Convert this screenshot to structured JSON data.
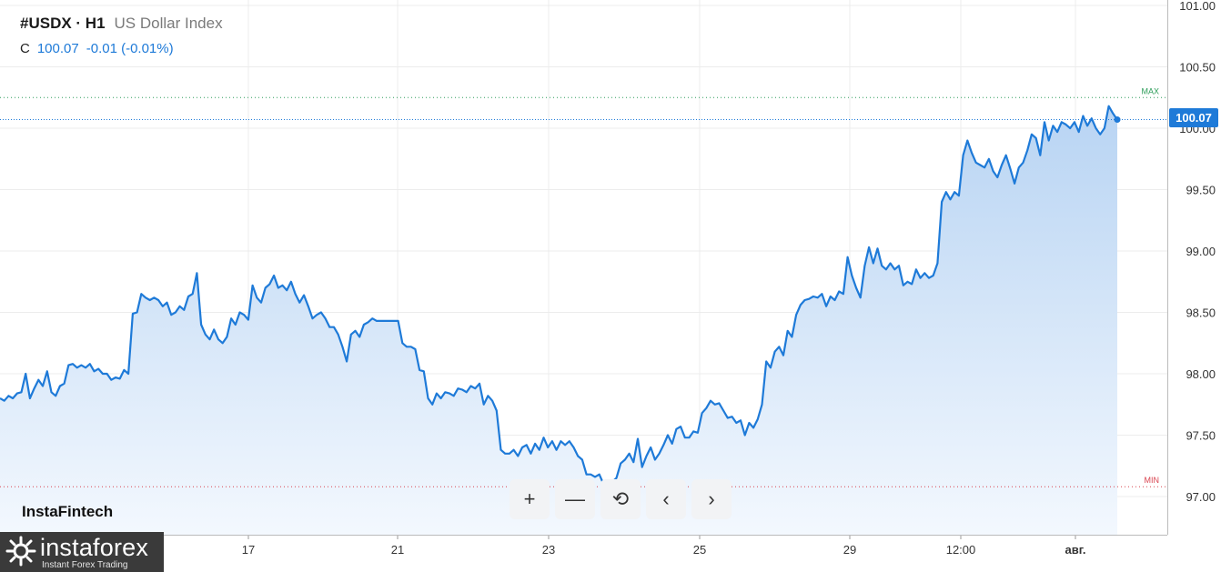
{
  "legend": {
    "symbol": "#USDX · H1",
    "description": "US Dollar Index",
    "ohlc_label": "C",
    "close": "100.07",
    "change": "-0.01 (-0.01%)"
  },
  "watermark": "InstaFintech",
  "brand": {
    "name": "instaforex",
    "tagline": "Instant Forex Trading"
  },
  "markers": {
    "max_label": "MAX",
    "min_label": "MIN"
  },
  "last_price_label": "100.07",
  "colors": {
    "line": "#1e7ad8",
    "area_top": "#b8d4f3",
    "area_bottom": "#f3f8fe",
    "max": "#2e9d5a",
    "min": "#d9434f",
    "grid": "#ececec"
  },
  "toolbar": {
    "zoom_in": "+",
    "zoom_out": "—",
    "reset": "⟲",
    "prev": "‹",
    "next": "›"
  },
  "chart_data": {
    "type": "area",
    "y_ticks": [
      "101.00",
      "100.50",
      "100.00",
      "99.50",
      "99.00",
      "98.50",
      "98.00",
      "97.50",
      "97.00"
    ],
    "x_ticks": [
      "17",
      "21",
      "23",
      "25",
      "29",
      "12:00",
      "авг."
    ],
    "ylim": [
      96.8,
      101.05
    ],
    "max_level": 100.25,
    "min_level": 97.08,
    "last_value": 100.07,
    "grid": true,
    "series": [
      {
        "values": [
          97.8,
          97.78,
          97.82,
          97.8,
          97.84,
          97.85,
          98.0,
          97.8,
          97.88,
          97.95,
          97.9,
          98.02,
          97.85,
          97.82,
          97.9,
          97.92,
          98.07,
          98.08,
          98.05,
          98.07,
          98.05,
          98.08,
          98.02,
          98.04,
          98.0,
          98.0,
          97.95,
          97.97,
          97.96,
          98.03,
          98.0,
          98.49,
          98.5,
          98.65,
          98.62,
          98.6,
          98.62,
          98.6,
          98.55,
          98.58,
          98.48,
          98.5,
          98.55,
          98.52,
          98.63,
          98.65,
          98.82,
          98.4,
          98.32,
          98.28,
          98.36,
          98.28,
          98.25,
          98.3,
          98.45,
          98.4,
          98.5,
          98.48,
          98.44,
          98.72,
          98.62,
          98.58,
          98.7,
          98.73,
          98.8,
          98.7,
          98.72,
          98.68,
          98.75,
          98.65,
          98.58,
          98.64,
          98.55,
          98.45,
          98.48,
          98.5,
          98.45,
          98.38,
          98.38,
          98.32,
          98.22,
          98.1,
          98.32,
          98.35,
          98.3,
          98.4,
          98.42,
          98.45,
          98.43,
          98.43,
          98.43,
          98.43,
          98.43,
          98.43,
          98.25,
          98.22,
          98.22,
          98.2,
          98.03,
          98.02,
          97.8,
          97.75,
          97.84,
          97.8,
          97.85,
          97.84,
          97.82,
          97.88,
          97.87,
          97.85,
          97.9,
          97.88,
          97.92,
          97.75,
          97.82,
          97.78,
          97.7,
          97.38,
          97.35,
          97.35,
          97.38,
          97.33,
          97.4,
          97.42,
          97.35,
          97.43,
          97.38,
          97.48,
          97.4,
          97.45,
          97.38,
          97.45,
          97.42,
          97.45,
          97.4,
          97.33,
          97.3,
          97.18,
          97.18,
          97.16,
          97.18,
          97.1,
          97.12,
          97.12,
          97.15,
          97.27,
          97.3,
          97.35,
          97.28,
          97.47,
          97.24,
          97.33,
          97.4,
          97.3,
          97.35,
          97.42,
          97.5,
          97.43,
          97.55,
          97.57,
          97.48,
          97.48,
          97.53,
          97.52,
          97.68,
          97.72,
          97.78,
          97.75,
          97.76,
          97.7,
          97.64,
          97.65,
          97.6,
          97.62,
          97.5,
          97.6,
          97.56,
          97.63,
          97.75,
          98.1,
          98.05,
          98.18,
          98.22,
          98.15,
          98.35,
          98.3,
          98.48,
          98.56,
          98.6,
          98.61,
          98.63,
          98.62,
          98.65,
          98.55,
          98.63,
          98.6,
          98.67,
          98.65,
          98.95,
          98.8,
          98.7,
          98.62,
          98.88,
          99.03,
          98.9,
          99.02,
          98.88,
          98.85,
          98.9,
          98.85,
          98.88,
          98.72,
          98.75,
          98.73,
          98.85,
          98.78,
          98.82,
          98.78,
          98.8,
          98.9,
          99.4,
          99.48,
          99.42,
          99.48,
          99.45,
          99.78,
          99.9,
          99.8,
          99.72,
          99.7,
          99.68,
          99.75,
          99.65,
          99.6,
          99.7,
          99.78,
          99.67,
          99.55,
          99.68,
          99.72,
          99.82,
          99.95,
          99.92,
          99.78,
          100.05,
          99.9,
          100.02,
          99.97,
          100.05,
          100.03,
          100.0,
          100.05,
          99.97,
          100.1,
          100.02,
          100.08,
          100.0,
          99.95,
          100.0,
          100.18,
          100.12,
          100.07
        ]
      }
    ]
  }
}
